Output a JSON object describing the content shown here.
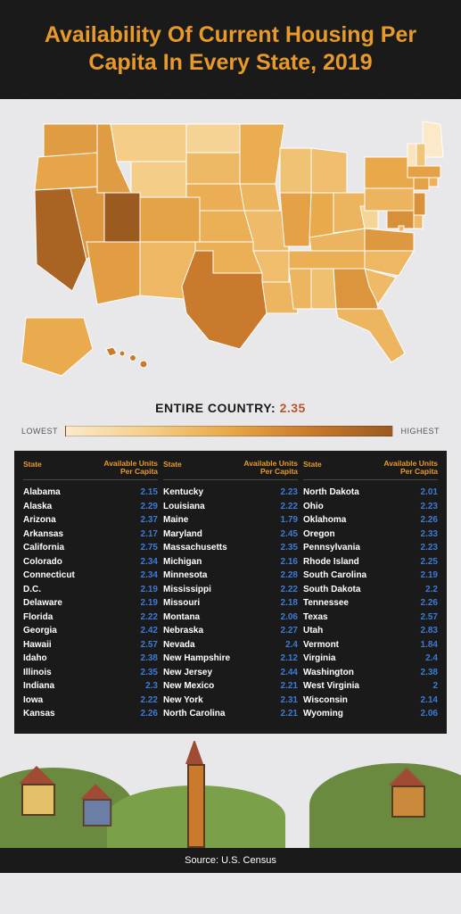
{
  "header": {
    "title": "Availability Of Current Housing Per Capita In Every State, 2019"
  },
  "country": {
    "label": "ENTIRE COUNTRY:",
    "value": "2.35"
  },
  "legend": {
    "low": "LOWEST",
    "high": "HIGHEST",
    "gradient": [
      "#fbe9ca",
      "#f4cf8a",
      "#e9a84a",
      "#c97a2c",
      "#9b5a20"
    ]
  },
  "table": {
    "head_state": "State",
    "head_value": "Available Units Per Capita",
    "text_color_state": "#ffffff",
    "text_color_value": "#3b7bd6",
    "head_color": "#e79a2a",
    "bg": "#1a1a1a",
    "rows": [
      {
        "s": "Alabama",
        "v": "2.15"
      },
      {
        "s": "Alaska",
        "v": "2.29"
      },
      {
        "s": "Arizona",
        "v": "2.37"
      },
      {
        "s": "Arkansas",
        "v": "2.17"
      },
      {
        "s": "California",
        "v": "2.75"
      },
      {
        "s": "Colorado",
        "v": "2.34"
      },
      {
        "s": "Connecticut",
        "v": "2.34"
      },
      {
        "s": "D.C.",
        "v": "2.19"
      },
      {
        "s": "Delaware",
        "v": "2.19"
      },
      {
        "s": "Florida",
        "v": "2.22"
      },
      {
        "s": "Georgia",
        "v": "2.42"
      },
      {
        "s": "Hawaii",
        "v": "2.57"
      },
      {
        "s": "Idaho",
        "v": "2.38"
      },
      {
        "s": "Illinois",
        "v": "2.35"
      },
      {
        "s": "Indiana",
        "v": "2.3"
      },
      {
        "s": "Iowa",
        "v": "2.22"
      },
      {
        "s": "Kansas",
        "v": "2.26"
      },
      {
        "s": "Kentucky",
        "v": "2.23"
      },
      {
        "s": "Louisiana",
        "v": "2.22"
      },
      {
        "s": "Maine",
        "v": "1.79"
      },
      {
        "s": "Maryland",
        "v": "2.45"
      },
      {
        "s": "Massachusetts",
        "v": "2.35"
      },
      {
        "s": "Michigan",
        "v": "2.16"
      },
      {
        "s": "Minnesota",
        "v": "2.28"
      },
      {
        "s": "Mississippi",
        "v": "2.22"
      },
      {
        "s": "Missouri",
        "v": "2.18"
      },
      {
        "s": "Montana",
        "v": "2.06"
      },
      {
        "s": "Nebraska",
        "v": "2.27"
      },
      {
        "s": "Nevada",
        "v": "2.4"
      },
      {
        "s": "New Hampshire",
        "v": "2.12"
      },
      {
        "s": "New Jersey",
        "v": "2.44"
      },
      {
        "s": "New Mexico",
        "v": "2.21"
      },
      {
        "s": "New York",
        "v": "2.31"
      },
      {
        "s": "North Carolina",
        "v": "2.21"
      },
      {
        "s": "North Dakota",
        "v": "2.01"
      },
      {
        "s": "Ohio",
        "v": "2.23"
      },
      {
        "s": "Oklahoma",
        "v": "2.26"
      },
      {
        "s": "Oregon",
        "v": "2.33"
      },
      {
        "s": "Pennsylvania",
        "v": "2.23"
      },
      {
        "s": "Rhode Island",
        "v": "2.25"
      },
      {
        "s": "South Carolina",
        "v": "2.19"
      },
      {
        "s": "South Dakota",
        "v": "2.2"
      },
      {
        "s": "Tennessee",
        "v": "2.26"
      },
      {
        "s": "Texas",
        "v": "2.57"
      },
      {
        "s": "Utah",
        "v": "2.83"
      },
      {
        "s": "Vermont",
        "v": "1.84"
      },
      {
        "s": "Virginia",
        "v": "2.4"
      },
      {
        "s": "Washington",
        "v": "2.38"
      },
      {
        "s": "West Virginia",
        "v": "2"
      },
      {
        "s": "Wisconsin",
        "v": "2.14"
      },
      {
        "s": "Wyoming",
        "v": "2.06"
      }
    ]
  },
  "map": {
    "type": "choropleth",
    "low": 1.79,
    "high": 2.83,
    "outline_color": "#ffffff",
    "states": {
      "WA": 2.38,
      "OR": 2.33,
      "CA": 2.75,
      "NV": 2.4,
      "ID": 2.38,
      "MT": 2.06,
      "WY": 2.06,
      "UT": 2.83,
      "AZ": 2.37,
      "CO": 2.34,
      "NM": 2.21,
      "ND": 2.01,
      "SD": 2.2,
      "NE": 2.27,
      "KS": 2.26,
      "OK": 2.26,
      "TX": 2.57,
      "MN": 2.28,
      "IA": 2.22,
      "MO": 2.18,
      "AR": 2.17,
      "LA": 2.22,
      "WI": 2.14,
      "IL": 2.35,
      "IN": 2.3,
      "MI": 2.16,
      "OH": 2.23,
      "KY": 2.23,
      "TN": 2.26,
      "MS": 2.22,
      "AL": 2.15,
      "GA": 2.42,
      "FL": 2.22,
      "SC": 2.19,
      "NC": 2.21,
      "VA": 2.4,
      "WV": 2.0,
      "PA": 2.23,
      "NY": 2.31,
      "ME": 1.79,
      "NH": 2.12,
      "VT": 1.84,
      "MA": 2.35,
      "RI": 2.25,
      "CT": 2.34,
      "NJ": 2.44,
      "DE": 2.19,
      "MD": 2.45,
      "DC": 2.19,
      "AK": 2.29,
      "HI": 2.57
    }
  },
  "colors": {
    "title": "#e79a2a",
    "bg_dark": "#1a1a1a",
    "bg_light": "#e8e8ea"
  },
  "source": "Source: U.S. Census"
}
